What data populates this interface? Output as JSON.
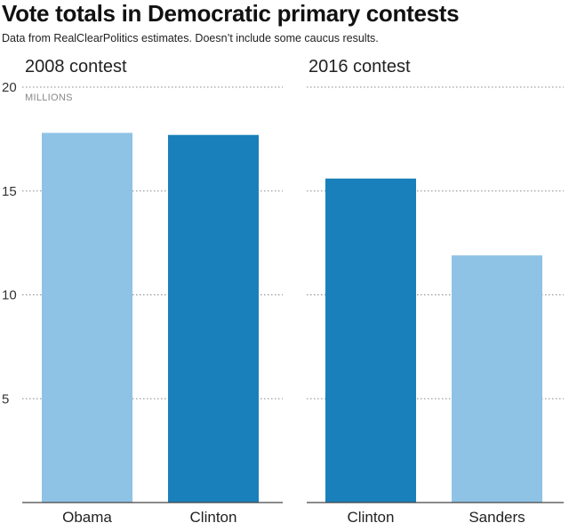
{
  "header": {
    "title": "Vote totals in Democratic primary contests",
    "subtitle": "Data from RealClearPolitics estimates. Doesn’t include some caucus results."
  },
  "chart_data": [
    {
      "type": "bar",
      "title": "2008 contest",
      "ylabel": "MILLIONS",
      "ylim": [
        0,
        20
      ],
      "yticks": [
        5,
        10,
        15,
        20
      ],
      "categories": [
        "Obama",
        "Clinton"
      ],
      "values": [
        17.8,
        17.7
      ],
      "colors": [
        "#8ec3e6",
        "#1a80bb"
      ],
      "grid": true
    },
    {
      "type": "bar",
      "title": "2016 contest",
      "ylim": [
        0,
        20
      ],
      "yticks": [
        5,
        10,
        15,
        20
      ],
      "categories": [
        "Clinton",
        "Sanders"
      ],
      "values": [
        15.6,
        11.9
      ],
      "colors": [
        "#1a80bb",
        "#8ec3e6"
      ],
      "grid": true
    }
  ]
}
